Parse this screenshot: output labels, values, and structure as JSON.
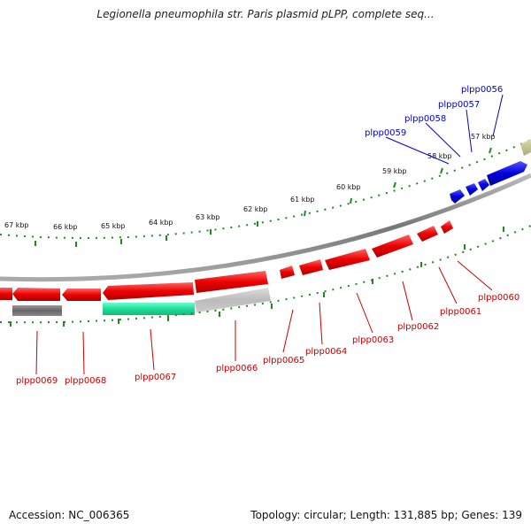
{
  "title": "Legionella pneumophila str. Paris plasmid pLPP, complete seq...",
  "footer": {
    "accession": "Accession: NC_006365",
    "topology": "Topology: circular; Length: 131,885 bp; Genes: 139"
  },
  "kbp_labels": [
    "57 kbp",
    "58 kbp",
    "59 kbp",
    "60 kbp",
    "61 kbp",
    "62 kbp",
    "63 kbp",
    "64 kbp",
    "65 kbp",
    "66 kbp",
    "67 kbp"
  ],
  "gene_labels_red": [
    "plpp0060",
    "plpp0061",
    "plpp0062",
    "plpp0063",
    "plpp0064",
    "plpp0065",
    "plpp0066",
    "plpp0067",
    "plpp0068",
    "plpp0069"
  ],
  "gene_labels_blue": [
    "plpp0056",
    "plpp0057",
    "plpp0058",
    "plpp0059"
  ],
  "colors": {
    "forward_genes": "#0000dd",
    "reverse_genes": "#ee0000",
    "backbone": "#888888",
    "ticks": "#228822",
    "highlight": "#22dd99"
  }
}
